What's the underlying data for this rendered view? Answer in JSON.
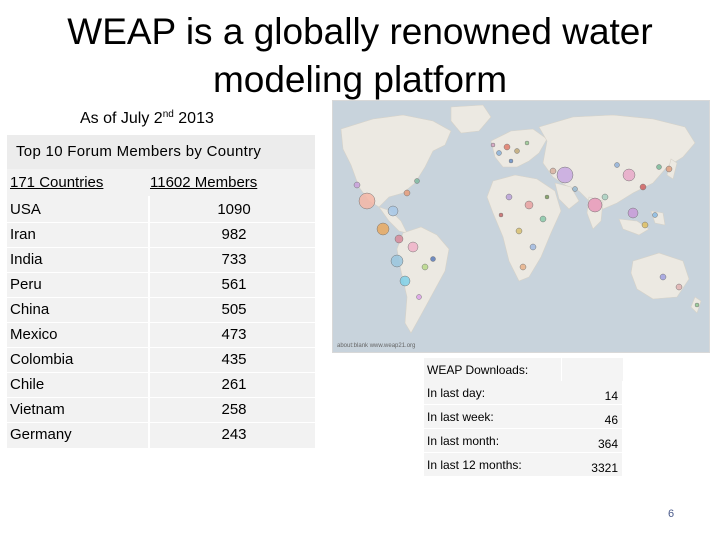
{
  "slide": {
    "title": "WEAP is a globally renowned water modeling platform",
    "as_of_prefix": "As of July 2",
    "as_of_sup": "nd",
    "as_of_suffix": " 2013",
    "page_number": "6"
  },
  "members_table": {
    "header": "Top 10 Forum Members by Country",
    "col_countries": "171 Countries",
    "col_members": "11602 Members",
    "rows": [
      {
        "country": "USA",
        "members": "1090"
      },
      {
        "country": "Iran",
        "members": "982"
      },
      {
        "country": "India",
        "members": "733"
      },
      {
        "country": "Peru",
        "members": "561"
      },
      {
        "country": "China",
        "members": "505"
      },
      {
        "country": "Mexico",
        "members": "473"
      },
      {
        "country": "Colombia",
        "members": "435"
      },
      {
        "country": "Chile",
        "members": "261"
      },
      {
        "country": "Vietnam",
        "members": "258"
      },
      {
        "country": "Germany",
        "members": "243"
      }
    ]
  },
  "map": {
    "credit": "about:blank   www.weap21.org",
    "ocean_color": "#c8d3dc",
    "land_color": "#ece9e2"
  },
  "downloads": {
    "title": "WEAP Downloads:",
    "rows": [
      {
        "label": "In last day:",
        "value": "14"
      },
      {
        "label": "In last week:",
        "value": "46"
      },
      {
        "label": "In last month:",
        "value": "364"
      },
      {
        "label": "In last 12 months:",
        "value": "3321"
      }
    ]
  }
}
